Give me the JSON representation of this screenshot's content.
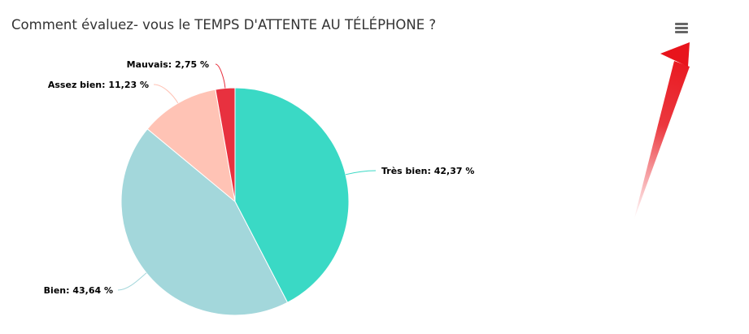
{
  "chart_data": {
    "type": "pie",
    "title": "Comment évaluez- vous le TEMPS D'ATTENTE AU TÉLÉPHONE ?",
    "slices": [
      {
        "name": "Très bien",
        "value": 42.37,
        "label": "Très bien: 42,37 %",
        "color": "#3AD9C5"
      },
      {
        "name": "Bien",
        "value": 43.64,
        "label": "Bien: 43,64 %",
        "color": "#A3D7DB"
      },
      {
        "name": "Assez bien",
        "value": 11.23,
        "label": "Assez bien: 11,23 %",
        "color": "#FFC3B5"
      },
      {
        "name": "Mauvais",
        "value": 2.75,
        "label": "Mauvais: 2,75 %",
        "color": "#E8313F"
      }
    ]
  },
  "menu": {
    "icon": "hamburger-menu-icon"
  },
  "annotation": {
    "icon": "red-arrow-icon",
    "color": "#E8141C"
  }
}
